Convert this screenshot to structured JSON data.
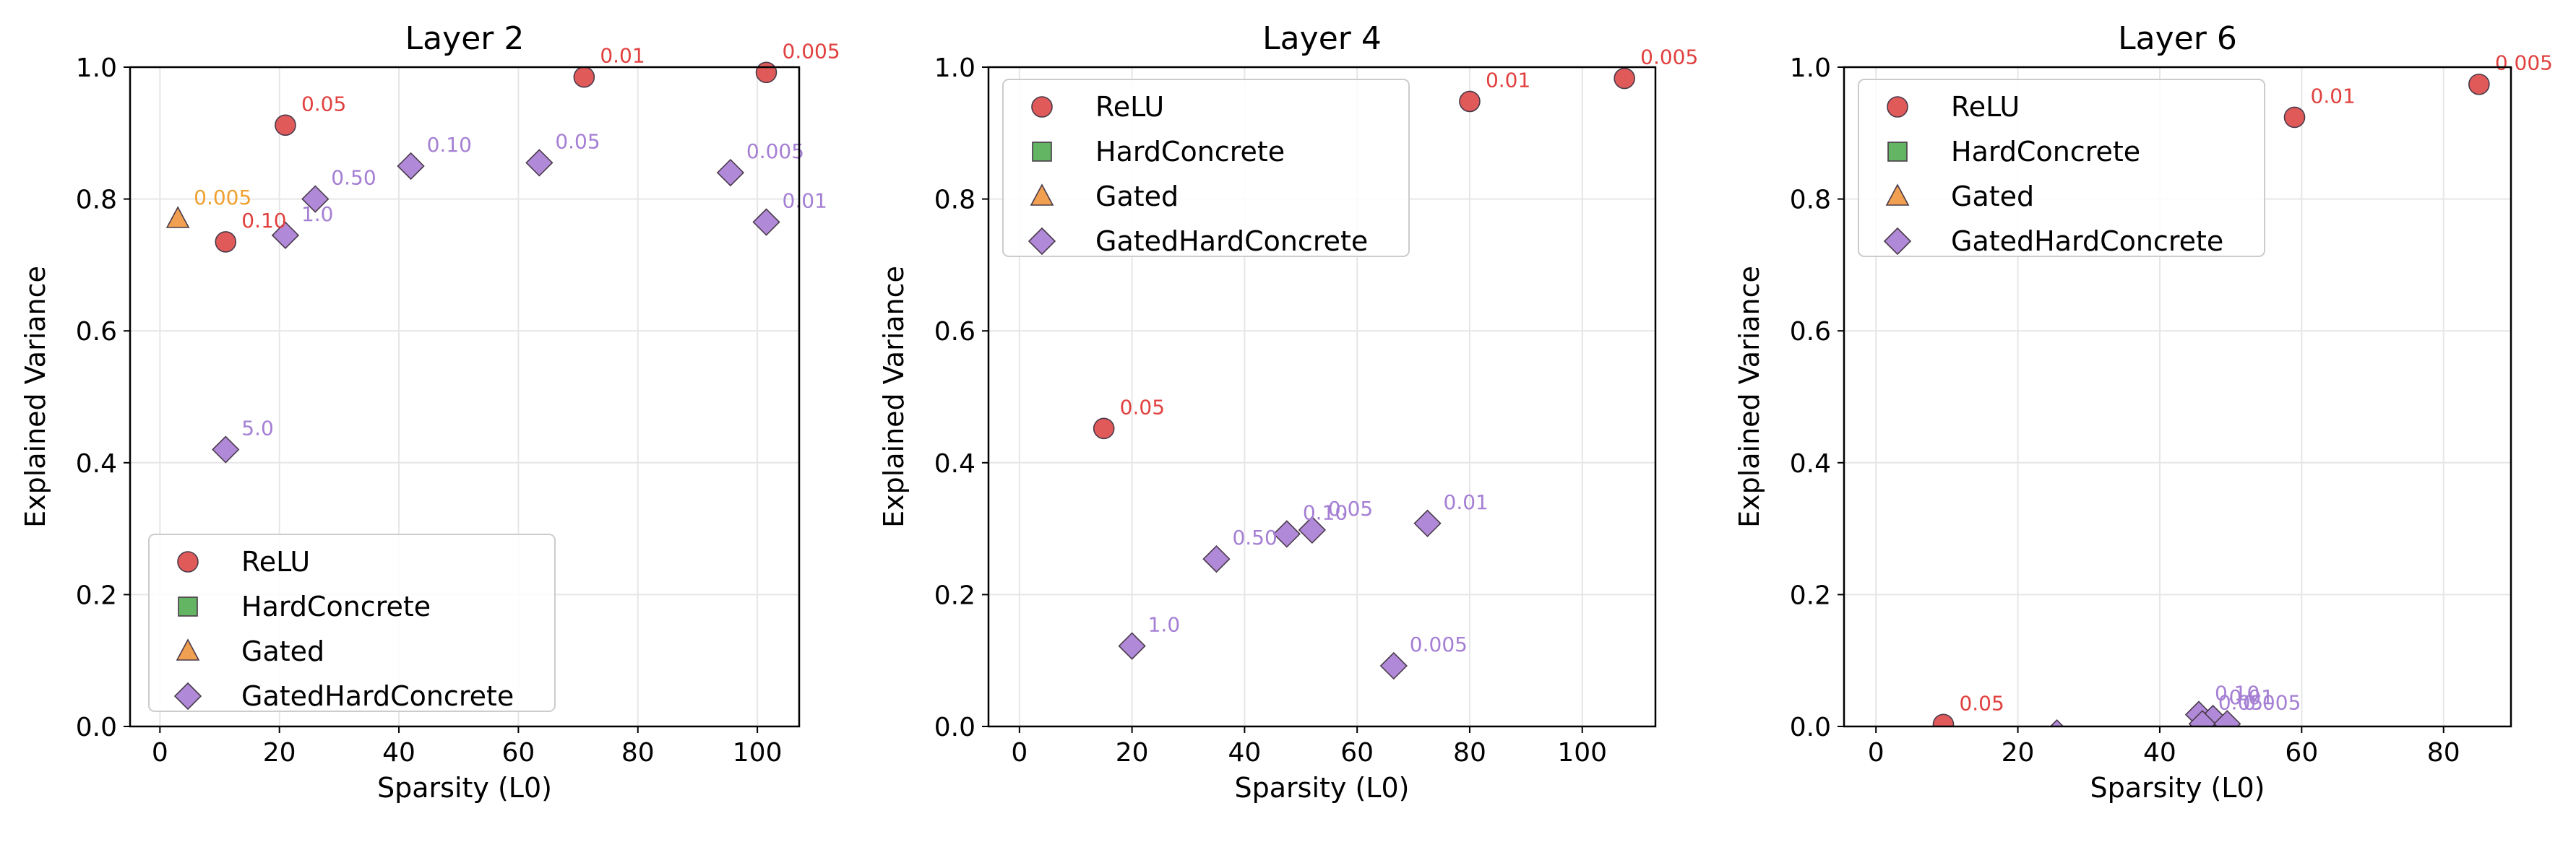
{
  "colors": {
    "ReLU": "#e05a5a",
    "HardConcrete": "#63b463",
    "Gated": "#f0a050",
    "GatedHardConcrete": "#b08ad8",
    "ReLU_label": "#e0413f",
    "Gated_label": "#f0a030",
    "GatedHardConcrete_label": "#a57fd4",
    "grid": "#e6e6e6",
    "axis": "#000000"
  },
  "legend_items": [
    {
      "name": "ReLU",
      "marker": "circle"
    },
    {
      "name": "HardConcrete",
      "marker": "square"
    },
    {
      "name": "Gated",
      "marker": "triangle"
    },
    {
      "name": "GatedHardConcrete",
      "marker": "diamond"
    }
  ],
  "chart_data": [
    {
      "type": "scatter",
      "title": "Layer 2",
      "xlabel": "Sparsity (L0)",
      "ylabel": "Explained Variance",
      "xlim": [
        -5,
        107
      ],
      "ylim": [
        0,
        1
      ],
      "xticks": [
        0,
        20,
        40,
        60,
        80,
        100
      ],
      "yticks": [
        0.0,
        0.2,
        0.4,
        0.6,
        0.8,
        1.0
      ],
      "xtick_labels": [
        "0",
        "20",
        "40",
        "60",
        "80",
        "100"
      ],
      "ytick_labels": [
        "0.0",
        "0.2",
        "0.4",
        "0.6",
        "0.8",
        "1.0"
      ],
      "grid": true,
      "legend_position": "lower-left",
      "series": [
        {
          "name": "ReLU",
          "points": [
            {
              "x": 11,
              "y": 0.735,
              "label": "0.10"
            },
            {
              "x": 21,
              "y": 0.912,
              "label": "0.05"
            },
            {
              "x": 71,
              "y": 0.985,
              "label": "0.01"
            },
            {
              "x": 101.5,
              "y": 0.992,
              "label": "0.005"
            }
          ]
        },
        {
          "name": "HardConcrete",
          "points": []
        },
        {
          "name": "Gated",
          "points": [
            {
              "x": 3,
              "y": 0.77,
              "label": "0.005"
            }
          ]
        },
        {
          "name": "GatedHardConcrete",
          "points": [
            {
              "x": 11,
              "y": 0.42,
              "label": "5.0"
            },
            {
              "x": 21,
              "y": 0.745,
              "label": "1.0"
            },
            {
              "x": 26,
              "y": 0.8,
              "label": "0.50"
            },
            {
              "x": 42,
              "y": 0.85,
              "label": "0.10"
            },
            {
              "x": 63.5,
              "y": 0.855,
              "label": "0.05"
            },
            {
              "x": 95.5,
              "y": 0.84,
              "label": "0.005"
            },
            {
              "x": 101.5,
              "y": 0.765,
              "label": "0.01"
            }
          ]
        }
      ]
    },
    {
      "type": "scatter",
      "title": "Layer 4",
      "xlabel": "Sparsity (L0)",
      "ylabel": "Explained Variance",
      "xlim": [
        -5.5,
        113
      ],
      "ylim": [
        0,
        1
      ],
      "xticks": [
        0,
        20,
        40,
        60,
        80,
        100
      ],
      "yticks": [
        0.0,
        0.2,
        0.4,
        0.6,
        0.8,
        1.0
      ],
      "xtick_labels": [
        "0",
        "20",
        "40",
        "60",
        "80",
        "100"
      ],
      "ytick_labels": [
        "0.0",
        "0.2",
        "0.4",
        "0.6",
        "0.8",
        "1.0"
      ],
      "grid": true,
      "legend_position": "upper-left",
      "series": [
        {
          "name": "ReLU",
          "points": [
            {
              "x": 15,
              "y": 0.452,
              "label": "0.05"
            },
            {
              "x": 80,
              "y": 0.948,
              "label": "0.01"
            },
            {
              "x": 107.5,
              "y": 0.983,
              "label": "0.005"
            }
          ]
        },
        {
          "name": "HardConcrete",
          "points": []
        },
        {
          "name": "Gated",
          "points": []
        },
        {
          "name": "GatedHardConcrete",
          "points": [
            {
              "x": 20,
              "y": 0.122,
              "label": "1.0"
            },
            {
              "x": 35,
              "y": 0.254,
              "label": "0.50"
            },
            {
              "x": 47.5,
              "y": 0.292,
              "label": "0.10"
            },
            {
              "x": 52,
              "y": 0.298,
              "label": "0.05"
            },
            {
              "x": 72.5,
              "y": 0.308,
              "label": "0.01"
            },
            {
              "x": 66.5,
              "y": 0.092,
              "label": "0.005"
            }
          ]
        }
      ]
    },
    {
      "type": "scatter",
      "title": "Layer 6",
      "xlabel": "Sparsity (L0)",
      "ylabel": "Explained Variance",
      "xlim": [
        -4.5,
        89.5
      ],
      "ylim": [
        0,
        1
      ],
      "xticks": [
        0,
        20,
        40,
        60,
        80
      ],
      "yticks": [
        0.0,
        0.2,
        0.4,
        0.6,
        0.8,
        1.0
      ],
      "xtick_labels": [
        "0",
        "20",
        "40",
        "60",
        "80"
      ],
      "ytick_labels": [
        "0.0",
        "0.2",
        "0.4",
        "0.6",
        "0.8",
        "1.0"
      ],
      "grid": true,
      "legend_position": "upper-left",
      "series": [
        {
          "name": "ReLU",
          "points": [
            {
              "x": 9.5,
              "y": 0.003,
              "label": "0.05"
            },
            {
              "x": 59,
              "y": 0.924,
              "label": "0.01"
            },
            {
              "x": 85,
              "y": 0.974,
              "label": "0.005"
            }
          ]
        },
        {
          "name": "HardConcrete",
          "points": []
        },
        {
          "name": "Gated",
          "points": []
        },
        {
          "name": "GatedHardConcrete",
          "points": [
            {
              "x": 25.5,
              "y": -0.01,
              "label": ""
            },
            {
              "x": 45.5,
              "y": 0.018,
              "label": "0.10"
            },
            {
              "x": 47.5,
              "y": 0.012,
              "label": "0.01"
            },
            {
              "x": 46,
              "y": 0.004,
              "label": "0.05"
            },
            {
              "x": 49.5,
              "y": 0.004,
              "label": "0.005"
            }
          ]
        }
      ]
    }
  ]
}
